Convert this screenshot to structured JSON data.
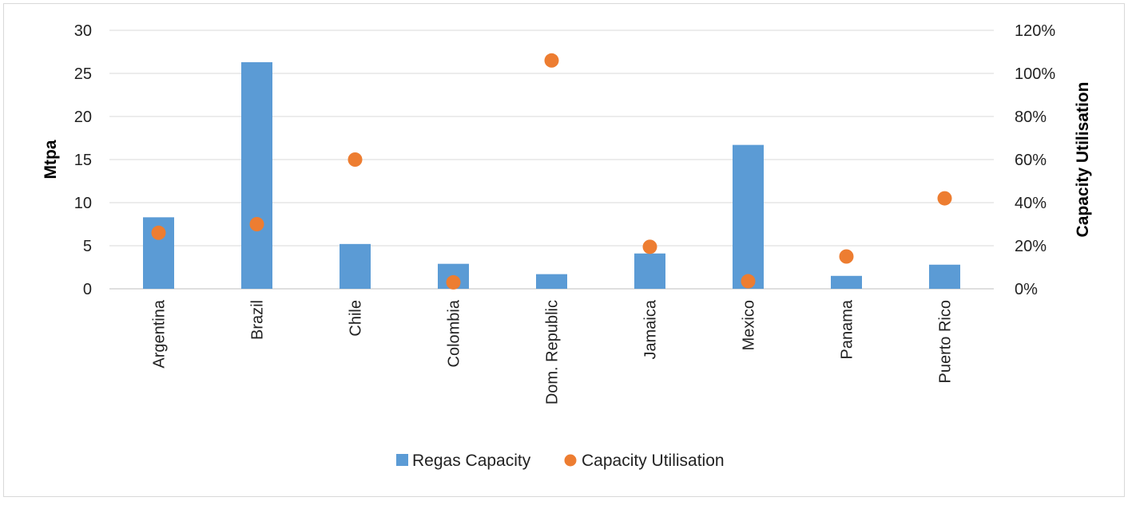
{
  "chart_data": {
    "type": "bar",
    "categories": [
      "Argentina",
      "Brazil",
      "Chile",
      "Colombia",
      "Dom. Republic",
      "Jamaica",
      "Mexico",
      "Panama",
      "Puerto Rico"
    ],
    "series": [
      {
        "name": "Regas Capacity",
        "kind": "bar",
        "axis": "left",
        "color": "#5b9bd5",
        "values": [
          8.3,
          26.3,
          5.2,
          2.9,
          1.7,
          4.1,
          16.7,
          1.5,
          2.8
        ]
      },
      {
        "name": "Capacity Utilisation",
        "kind": "scatter",
        "axis": "right",
        "color": "#ed7d31",
        "values": [
          0.26,
          0.3,
          0.6,
          0.03,
          1.06,
          0.195,
          0.035,
          0.15,
          0.42
        ]
      }
    ],
    "ylabel": "Mtpa",
    "ylabel_right": "Capacity Utilisation",
    "ylim": [
      0,
      30
    ],
    "ylim_right": [
      0,
      1.2
    ],
    "yticks": [
      "0",
      "5",
      "10",
      "15",
      "20",
      "25",
      "30"
    ],
    "yticks_right": [
      "0%",
      "20%",
      "40%",
      "60%",
      "80%",
      "100%",
      "120%"
    ],
    "grid": true,
    "legend_position": "bottom-center",
    "legend": [
      "Regas Capacity",
      "Capacity Utilisation"
    ]
  }
}
